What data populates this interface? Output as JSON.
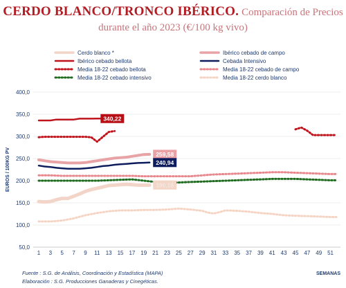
{
  "title": {
    "main": "CERDO BLANCO/TRONCO IBÉRICO.",
    "sub_inline": "Comparación de Precios",
    "sub_line2": "durante el año 2023 (€/100 kg vivo)"
  },
  "footer": {
    "source": "Fuente :  S.G. de Análisis, Coordinación y Estadística (MAPA)",
    "elaboration": "Elaboración : S.G. Producciones Ganaderas y Cinegéticas."
  },
  "chart_data": {
    "type": "line",
    "ylabel": "EUROS / 100KG PV",
    "xlabel": "SEMANAS",
    "ylim": [
      50,
      400
    ],
    "yticks": [
      50,
      100,
      150,
      200,
      250,
      300,
      350,
      400
    ],
    "ytick_labels": [
      "50,0",
      "100,0",
      "150,0",
      "200,0",
      "250,0",
      "300,0",
      "350,0",
      "400,0"
    ],
    "xlim": [
      1,
      52
    ],
    "xticks": [
      1,
      3,
      5,
      7,
      9,
      11,
      13,
      15,
      17,
      19,
      21,
      23,
      25,
      27,
      29,
      31,
      33,
      35,
      37,
      39,
      41,
      43,
      45,
      47,
      49,
      51
    ],
    "grid": true,
    "legend_position": "top",
    "series": [
      {
        "name": "Cerdo blanco *",
        "color": "#f2d5c8",
        "style": "solid",
        "width": 5,
        "x": [
          1,
          2,
          3,
          4,
          5,
          6,
          7,
          8,
          9,
          10,
          11,
          12,
          13,
          14,
          15,
          16,
          17,
          18,
          19,
          20
        ],
        "values": [
          153,
          152,
          153,
          157,
          160,
          160,
          165,
          170,
          176,
          180,
          183,
          186,
          189,
          190,
          191,
          192,
          191,
          190,
          190,
          190
        ]
      },
      {
        "name": "Ibérico cebado de campo",
        "color": "#e8a3a6",
        "style": "solid",
        "width": 4,
        "x": [
          1,
          2,
          3,
          4,
          5,
          6,
          7,
          8,
          9,
          10,
          11,
          12,
          13,
          14,
          15,
          16,
          17,
          18,
          19,
          20
        ],
        "values": [
          247,
          245,
          243,
          242,
          241,
          240,
          240,
          240,
          241,
          243,
          245,
          247,
          249,
          251,
          252,
          253,
          255,
          257,
          259,
          259.58
        ]
      },
      {
        "name": "Ibérico cebado bellota",
        "color": "#c0141c",
        "style": "solid",
        "width": 2.5,
        "x": [
          1,
          2,
          3,
          4,
          5,
          6,
          7,
          8,
          9,
          10,
          11,
          12
        ],
        "values": [
          336,
          336,
          336,
          338,
          338,
          338,
          338,
          340,
          340,
          340,
          340.22,
          340.22
        ]
      },
      {
        "name": "Cebada Intensivo",
        "color": "#0d1c5c",
        "style": "solid",
        "width": 2.5,
        "x": [
          1,
          2,
          3,
          4,
          5,
          6,
          7,
          8,
          9,
          10,
          11,
          12,
          13,
          14,
          15,
          16,
          17,
          18,
          19,
          20
        ],
        "values": [
          234,
          232,
          231,
          229,
          228,
          227,
          227,
          227,
          228,
          229,
          231,
          233,
          234,
          236,
          237,
          238,
          239,
          240,
          240.5,
          240.94
        ]
      },
      {
        "name": "Media 18-22 cebado bellota",
        "color": "#c0141c",
        "style": "dotted",
        "width": 3,
        "x": [
          1,
          2,
          3,
          4,
          5,
          6,
          7,
          8,
          9,
          10,
          11,
          12,
          13,
          14,
          null,
          45,
          46,
          47,
          48,
          49,
          50,
          51,
          52
        ],
        "values": [
          298,
          299,
          299,
          299,
          299,
          299,
          299,
          299,
          299,
          298,
          288,
          299,
          310,
          312,
          null,
          316,
          320,
          313,
          303,
          303,
          303,
          303,
          303
        ]
      },
      {
        "name": "Media 18-22 cebado de campo",
        "color": "#e8878c",
        "style": "dotted",
        "width": 3,
        "x": [
          1,
          3,
          5,
          7,
          9,
          11,
          13,
          15,
          17,
          19,
          21,
          23,
          25,
          27,
          29,
          31,
          33,
          35,
          37,
          39,
          41,
          43,
          45,
          47,
          49,
          51,
          52
        ],
        "values": [
          212,
          212,
          211,
          211,
          211,
          211,
          211,
          211,
          211,
          210,
          210,
          210,
          210,
          210,
          212,
          214,
          215,
          216,
          217,
          218,
          219,
          219,
          218,
          217,
          216,
          215,
          215
        ]
      },
      {
        "name": "Media 18-22 cebado intensivo",
        "color": "#1f6b1f",
        "style": "dotted",
        "width": 3,
        "x": [
          1,
          3,
          5,
          7,
          9,
          11,
          13,
          15,
          17,
          19,
          21,
          23,
          25,
          27,
          29,
          31,
          33,
          35,
          37,
          39,
          41,
          43,
          45,
          47,
          49,
          51,
          52
        ],
        "values": [
          200,
          200,
          200,
          200,
          200,
          200,
          201,
          202,
          203,
          200,
          197,
          196,
          196,
          197,
          198,
          199,
          200,
          201,
          202,
          203,
          204,
          204,
          204,
          203,
          202,
          201,
          201
        ]
      },
      {
        "name": "Media 18-22 cerdo blanco",
        "color": "#f5d4c4",
        "style": "dotted",
        "width": 3,
        "x": [
          1,
          3,
          5,
          7,
          9,
          11,
          13,
          15,
          17,
          19,
          21,
          23,
          25,
          27,
          29,
          30,
          31,
          32,
          33,
          35,
          37,
          39,
          41,
          43,
          45,
          47,
          49,
          51,
          52
        ],
        "values": [
          108,
          108,
          110,
          115,
          122,
          127,
          131,
          133,
          133,
          134,
          134,
          135,
          137,
          135,
          132,
          128,
          126,
          129,
          133,
          132,
          130,
          127,
          125,
          122,
          121,
          120,
          119,
          118,
          118
        ]
      }
    ],
    "annotations": [
      {
        "text": "340,22",
        "x": 11,
        "y": 340.22,
        "bg": "#b80f16",
        "fg": "#ffffff"
      },
      {
        "text": "259,58",
        "x": 20,
        "y": 259.58,
        "bg": "#eaa0a4",
        "fg": "#ffffff"
      },
      {
        "text": "240,94",
        "x": 20,
        "y": 240.94,
        "bg": "#0d1c5c",
        "fg": "#ffffff"
      },
      {
        "text": "190,16",
        "x": 20,
        "y": 190.16,
        "bg": "#f4d6c8",
        "fg": "#f0e8e2"
      }
    ]
  }
}
